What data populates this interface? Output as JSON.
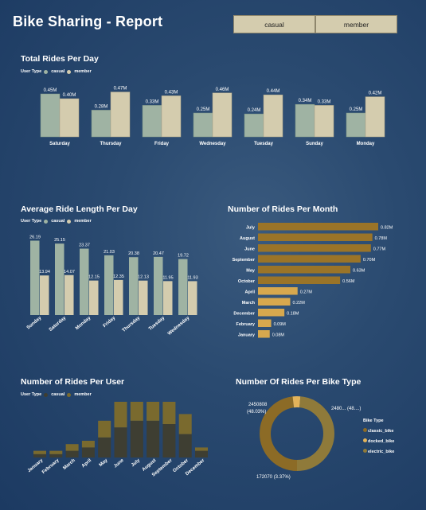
{
  "header": {
    "title": "Bike Sharing - Report"
  },
  "slicers": [
    {
      "label": "casual"
    },
    {
      "label": "member"
    }
  ],
  "colors": {
    "casual": "#9fb3a3",
    "member": "#d4ccae",
    "month_bar": "#b58a33",
    "user_dark": "#3e3e32",
    "user_light": "#7a6a2e",
    "donut_classic": "#8c6b26",
    "donut_docked": "#e3b35a",
    "donut_electric": "#8f7a3a"
  },
  "total_rides": {
    "title": "Total Rides Per Day",
    "legend_title": "User Type",
    "legend": [
      "casual",
      "member"
    ]
  },
  "avg_length": {
    "title": "Average Ride Length Per Day",
    "legend_title": "User Type",
    "legend": [
      "casual",
      "member"
    ]
  },
  "month_rides": {
    "title": "Number of Rides Per Month"
  },
  "user_rides": {
    "title": "Number of Rides Per User",
    "legend_title": "User Type",
    "legend": [
      "casual",
      "member"
    ]
  },
  "bike_type": {
    "title": "Number Of Rides Per Bike Type",
    "legend_title": "Bike Type",
    "legend": [
      "classic_bike",
      "docked_bike",
      "electric_bike"
    ]
  },
  "chart_data": [
    {
      "type": "bar",
      "title": "Total Rides Per Day",
      "categories": [
        "Saturday",
        "Thursday",
        "Friday",
        "Wednesday",
        "Tuesday",
        "Sunday",
        "Monday"
      ],
      "series": [
        {
          "name": "casual",
          "values": [
            0.45,
            0.28,
            0.33,
            0.25,
            0.24,
            0.34,
            0.25
          ]
        },
        {
          "name": "member",
          "values": [
            0.4,
            0.47,
            0.43,
            0.46,
            0.44,
            0.33,
            0.42
          ]
        }
      ],
      "data_labels": {
        "casual": [
          "0.45M",
          "0.28M",
          "0.33M",
          "0.25M",
          "0.24M",
          "0.34M",
          "0.25M"
        ],
        "member": [
          "0.40M",
          "0.47M",
          "0.43M",
          "0.46M",
          "0.44M",
          "0.33M",
          "0.42M"
        ]
      },
      "ylim": [
        0,
        0.5
      ]
    },
    {
      "type": "bar",
      "title": "Average Ride Length Per Day",
      "categories": [
        "Sunday",
        "Saturday",
        "Monday",
        "Friday",
        "Thursday",
        "Tuesday",
        "Wednesday"
      ],
      "series": [
        {
          "name": "casual",
          "values": [
            26.19,
            25.15,
            23.37,
            21.03,
            20.38,
            20.47,
            19.72
          ]
        },
        {
          "name": "member",
          "values": [
            13.94,
            14.07,
            12.15,
            12.35,
            12.13,
            11.95,
            11.93
          ]
        }
      ],
      "ylim": [
        0,
        28
      ]
    },
    {
      "type": "bar",
      "orientation": "horizontal",
      "title": "Number of Rides Per Month",
      "categories": [
        "July",
        "August",
        "June",
        "September",
        "May",
        "October",
        "April",
        "March",
        "December",
        "February",
        "January"
      ],
      "values": [
        0.82,
        0.78,
        0.77,
        0.7,
        0.63,
        0.56,
        0.27,
        0.22,
        0.18,
        0.09,
        0.08
      ],
      "data_labels": [
        "0.82M",
        "0.78M",
        "0.77M",
        "0.70M",
        "0.63M",
        "0.56M",
        "0.27M",
        "0.22M",
        "0.18M",
        "0.09M",
        "0.08M"
      ],
      "xlim": [
        0,
        0.82
      ]
    },
    {
      "type": "bar",
      "stacked": true,
      "title": "Number of Rides Per User",
      "categories": [
        "January",
        "February",
        "March",
        "April",
        "May",
        "June",
        "July",
        "August",
        "September",
        "October",
        "December"
      ],
      "series": [
        {
          "name": "casual",
          "values": [
            1,
            1,
            2,
            3,
            6,
            9,
            11,
            11,
            10,
            7,
            2
          ]
        },
        {
          "name": "member",
          "values": [
            1,
            1,
            2,
            2,
            5,
            8,
            8,
            8,
            7,
            6,
            1
          ]
        }
      ],
      "ylim": [
        0,
        20
      ]
    },
    {
      "type": "pie",
      "donut": true,
      "title": "Number Of Rides Per Bike Type",
      "categories": [
        "classic_bike",
        "docked_bike",
        "electric_bike"
      ],
      "values": [
        2450808,
        172070,
        2480000
      ],
      "data_labels": [
        "2450808\n(48.03%)",
        "172070 (3.37%)",
        "2480... (48....)"
      ]
    }
  ]
}
